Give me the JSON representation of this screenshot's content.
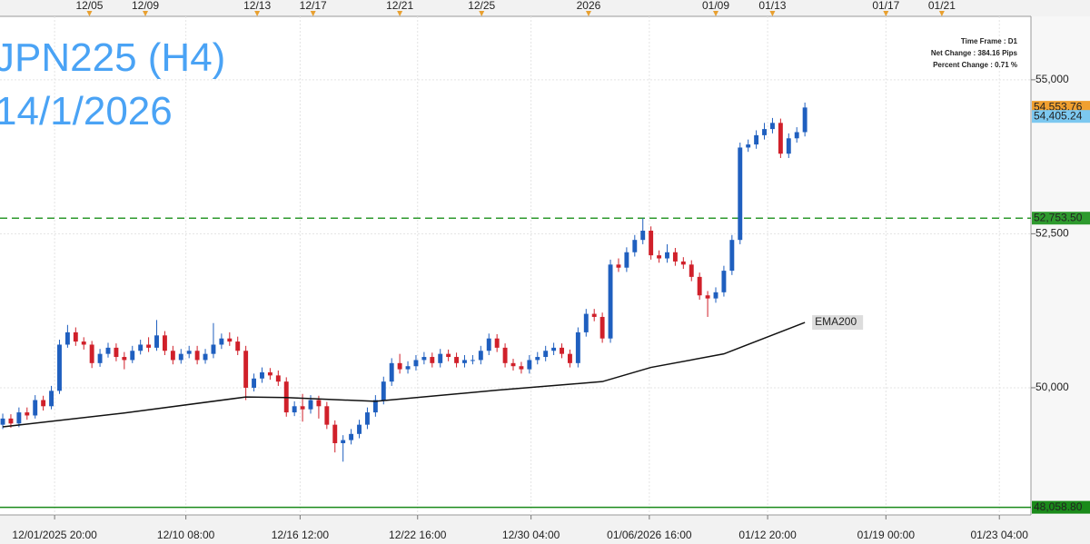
{
  "chart_data": {
    "type": "candlestick",
    "title": "JPN225 (H4)",
    "subtitle": "14/1/2026",
    "info": [
      "Time Frame : D1",
      "Net Change : 384.16 Pips",
      "Percent Change : 0.71 %"
    ],
    "up_color": "#1f5fbf",
    "down_color": "#d0202a",
    "grid": true,
    "xlim": [
      -0.34,
      126.9
    ],
    "ylim": [
      47935,
      56030
    ],
    "yticks": [
      {
        "value": 50000,
        "label": "50,000"
      },
      {
        "value": 52500,
        "label": "52,500"
      },
      {
        "value": 55000,
        "label": "55,000"
      }
    ],
    "xticks": [
      {
        "value": 6.4,
        "label": "12/01/2025 20:00"
      },
      {
        "value": 22.6,
        "label": "12/10 08:00"
      },
      {
        "value": 36.7,
        "label": "12/16 12:00"
      },
      {
        "value": 51.2,
        "label": "12/22 16:00"
      },
      {
        "value": 65.2,
        "label": "12/30 04:00"
      },
      {
        "value": 79.8,
        "label": "01/06/2026 16:00"
      },
      {
        "value": 94.4,
        "label": "01/12 20:00"
      },
      {
        "value": 109.0,
        "label": "01/19 00:00"
      },
      {
        "value": 123.0,
        "label": "01/23 04:00"
      }
    ],
    "top_ticks": [
      {
        "value": 10.7,
        "label": "12/05"
      },
      {
        "value": 17.6,
        "label": "12/09"
      },
      {
        "value": 31.4,
        "label": "12/13"
      },
      {
        "value": 38.3,
        "label": "12/17"
      },
      {
        "value": 49.0,
        "label": "12/21"
      },
      {
        "value": 59.1,
        "label": "12/25"
      },
      {
        "value": 72.3,
        "label": "2026"
      },
      {
        "value": 88.0,
        "label": "01/09"
      },
      {
        "value": 95.0,
        "label": "01/13"
      },
      {
        "value": 109.0,
        "label": "01/17"
      },
      {
        "value": 115.9,
        "label": "01/21"
      }
    ],
    "open": [
      49400,
      49500,
      49420,
      49600,
      49550,
      49800,
      49700,
      49950,
      50700,
      50900,
      50750,
      50700,
      50400,
      50550,
      50650,
      50500,
      50450,
      50600,
      50700,
      50650,
      50850,
      50600,
      50450,
      50550,
      50600,
      50450,
      50550,
      50700,
      50800,
      50750,
      50600,
      50000,
      50150,
      50250,
      50200,
      50100,
      49600,
      49700,
      49650,
      49800,
      49700,
      49400,
      49100,
      49150,
      49250,
      49400,
      49600,
      49800,
      50100,
      50400,
      50300,
      50350,
      50450,
      50500,
      50400,
      50550,
      50500,
      50400,
      50450,
      50450,
      50600,
      50800,
      50650,
      50400,
      50350,
      50300,
      50450,
      50500,
      50600,
      50650,
      50550,
      50400,
      50900,
      51200,
      51150,
      50800,
      52000,
      51950,
      52200,
      52400,
      52550,
      52150,
      52100,
      52200,
      52050,
      52000,
      51800,
      51500,
      51450,
      51550,
      51900,
      52400,
      53900,
      53950,
      54100,
      54200,
      54300,
      53800,
      54050,
      54150
    ],
    "high": [
      49580,
      49570,
      49680,
      49680,
      49880,
      49870,
      50030,
      50780,
      51020,
      50980,
      50820,
      50760,
      50630,
      50730,
      50720,
      50580,
      50680,
      50780,
      50820,
      51100,
      50920,
      50680,
      50630,
      50680,
      50680,
      50630,
      51050,
      50880,
      50900,
      50830,
      50680,
      50230,
      50330,
      50320,
      50280,
      50170,
      49780,
      49900,
      49880,
      49870,
      49770,
      49470,
      49230,
      49330,
      49480,
      49680,
      49880,
      50180,
      50480,
      50550,
      50430,
      50530,
      50580,
      50570,
      50630,
      50620,
      50570,
      50530,
      50530,
      50680,
      50880,
      50870,
      50720,
      50470,
      50420,
      50530,
      50580,
      50680,
      50730,
      50720,
      50620,
      50980,
      51280,
      51280,
      51220,
      52080,
      52100,
      52280,
      52480,
      52750,
      52620,
      52230,
      52330,
      52270,
      52120,
      52070,
      51870,
      51570,
      51630,
      51980,
      52480,
      53980,
      54030,
      54180,
      54300,
      54380,
      54370,
      54130,
      54230,
      54630
    ],
    "low": [
      49330,
      49350,
      49360,
      49480,
      49500,
      49630,
      49650,
      49900,
      50650,
      50680,
      50620,
      50320,
      50340,
      50490,
      50430,
      50300,
      50400,
      50540,
      50580,
      50600,
      50530,
      50380,
      50390,
      50480,
      50380,
      50390,
      50480,
      50630,
      50680,
      50530,
      49800,
      49940,
      50080,
      50130,
      50030,
      49530,
      49540,
      49450,
      49580,
      49500,
      49330,
      48950,
      48800,
      49080,
      49180,
      49330,
      49530,
      49730,
      50030,
      50230,
      50230,
      50280,
      50380,
      50330,
      50330,
      50430,
      50330,
      50330,
      50380,
      50380,
      50530,
      50580,
      50330,
      50280,
      50230,
      50230,
      50380,
      50430,
      50530,
      50480,
      50330,
      50330,
      50830,
      51080,
      50730,
      50730,
      51880,
      51880,
      52130,
      52330,
      52080,
      52030,
      52030,
      51980,
      51930,
      51730,
      51430,
      51150,
      51380,
      51480,
      51830,
      52330,
      53830,
      53880,
      54030,
      54130,
      53730,
      53730,
      53980,
      54080
    ],
    "close": [
      49500,
      49420,
      49600,
      49550,
      49800,
      49700,
      49950,
      50700,
      50900,
      50750,
      50700,
      50400,
      50550,
      50650,
      50500,
      50450,
      50600,
      50700,
      50650,
      50850,
      50600,
      50450,
      50550,
      50600,
      50450,
      50550,
      50700,
      50800,
      50750,
      50600,
      50000,
      50150,
      50250,
      50200,
      50100,
      49600,
      49700,
      49650,
      49800,
      49700,
      49400,
      49100,
      49150,
      49250,
      49400,
      49600,
      49800,
      50100,
      50400,
      50300,
      50350,
      50450,
      50500,
      50400,
      50550,
      50500,
      50400,
      50450,
      50450,
      50600,
      50800,
      50650,
      50400,
      50350,
      50300,
      50450,
      50500,
      50600,
      50650,
      50550,
      50400,
      50900,
      51200,
      51150,
      50800,
      52000,
      51950,
      52200,
      52400,
      52550,
      52150,
      52100,
      52200,
      52050,
      52000,
      51800,
      51500,
      51450,
      51550,
      51900,
      52400,
      53900,
      53950,
      54100,
      54200,
      54300,
      53800,
      54050,
      54150,
      54550
    ],
    "ema": {
      "name": "EMA200",
      "color": "#111111",
      "x": [
        0,
        15,
        30,
        35,
        46,
        61,
        74,
        80,
        89,
        99
      ],
      "values": [
        49366,
        49590,
        49850,
        49840,
        49780,
        49960,
        50100,
        50330,
        50550,
        51060
      ]
    },
    "levels": [
      {
        "value": 52753.5,
        "label": "52,753.50",
        "color": "#2e9a2e",
        "style": "dashed"
      },
      {
        "value": 48058.8,
        "label": "48,058.80",
        "color": "#1a8a1a",
        "style": "solid"
      }
    ],
    "price_labels": [
      {
        "value": 54553.76,
        "label": "54,553.76",
        "color": "#f0a030"
      },
      {
        "value": 54405.24,
        "label": "54,405.24",
        "color": "#7cc8f0"
      }
    ]
  }
}
